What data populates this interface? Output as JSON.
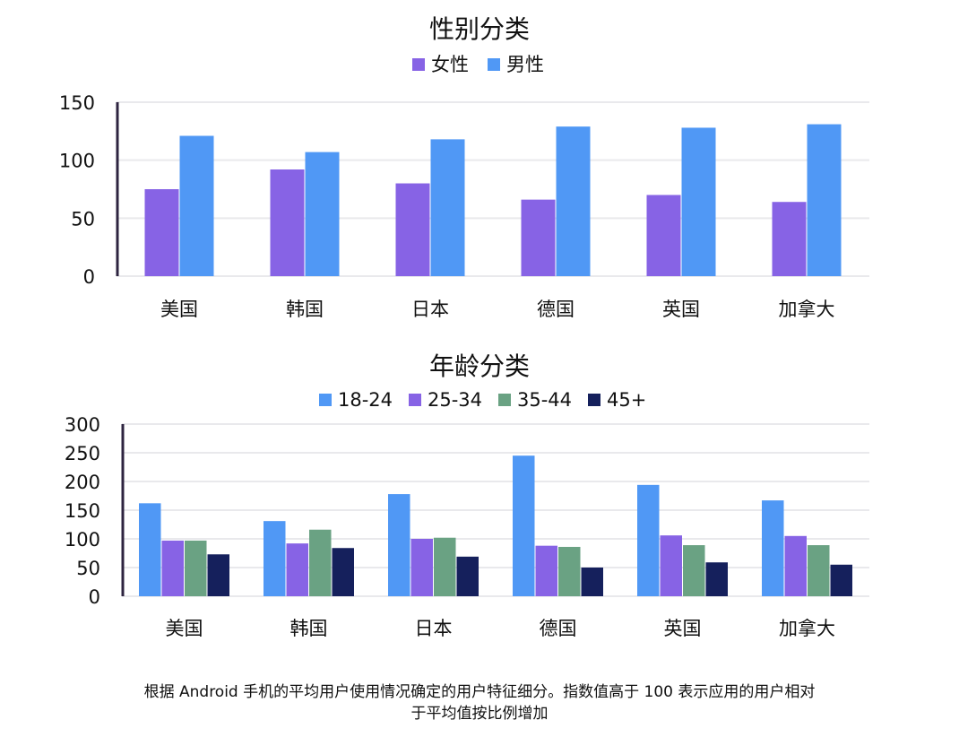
{
  "chart_data": [
    {
      "type": "bar",
      "title": "性别分类",
      "categories": [
        "美国",
        "韩国",
        "日本",
        "德国",
        "英国",
        "加拿大"
      ],
      "series": [
        {
          "name": "女性",
          "color": "#8763e5",
          "values": [
            75,
            92,
            80,
            66,
            70,
            64
          ]
        },
        {
          "name": "男性",
          "color": "#5098f5",
          "values": [
            121,
            107,
            118,
            129,
            128,
            131
          ]
        }
      ],
      "ylim": [
        0,
        150
      ],
      "yticks": [
        0,
        50,
        100,
        150
      ],
      "grid": true,
      "legend": "top"
    },
    {
      "type": "bar",
      "title": "年龄分类",
      "categories": [
        "美国",
        "韩国",
        "日本",
        "德国",
        "英国",
        "加拿大"
      ],
      "series": [
        {
          "name": "18-24",
          "color": "#5098f5",
          "values": [
            162,
            131,
            178,
            245,
            194,
            167
          ]
        },
        {
          "name": "25-34",
          "color": "#8763e5",
          "values": [
            97,
            92,
            100,
            88,
            106,
            105
          ]
        },
        {
          "name": "35-44",
          "color": "#6aa283",
          "values": [
            97,
            116,
            102,
            86,
            89,
            89
          ]
        },
        {
          "name": "45+",
          "color": "#15205c",
          "values": [
            73,
            84,
            69,
            50,
            59,
            55
          ]
        }
      ],
      "ylim": [
        0,
        300
      ],
      "yticks": [
        0,
        50,
        100,
        150,
        200,
        250,
        300
      ],
      "grid": true,
      "legend": "top"
    }
  ],
  "footnote_line1": "根据 Android 手机的平均用户使用情况确定的用户特征细分。指数值高于 100 表示应用的用户相对",
  "footnote_line2": "于平均值按比例增加"
}
